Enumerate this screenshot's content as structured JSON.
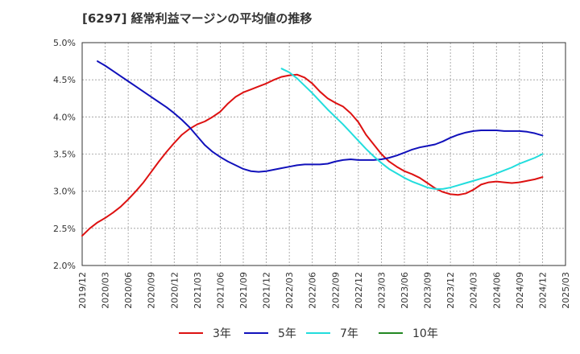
{
  "chart_data": {
    "type": "line",
    "title": "[6297]  経常利益マージンの平均値の推移",
    "xlabel": "",
    "ylabel": "",
    "ylim": [
      2.0,
      5.0
    ],
    "yticks": [
      "2.0%",
      "2.5%",
      "3.0%",
      "3.5%",
      "4.0%",
      "4.5%",
      "5.0%"
    ],
    "xticks": [
      "2019/12",
      "2020/03",
      "2020/06",
      "2020/09",
      "2020/12",
      "2021/03",
      "2021/06",
      "2021/09",
      "2021/12",
      "2022/03",
      "2022/06",
      "2022/09",
      "2022/12",
      "2023/03",
      "2023/06",
      "2023/09",
      "2023/12",
      "2024/03",
      "2024/06",
      "2024/09",
      "2024/12",
      "2025/03"
    ],
    "grid": true,
    "legend_position": "bottom",
    "series": [
      {
        "name": "3年",
        "color": "#dd1111",
        "points": [
          [
            "2019/12",
            2.4
          ],
          [
            "2020/01",
            2.5
          ],
          [
            "2020/02",
            2.58
          ],
          [
            "2020/03",
            2.64
          ],
          [
            "2020/04",
            2.71
          ],
          [
            "2020/05",
            2.79
          ],
          [
            "2020/06",
            2.89
          ],
          [
            "2020/07",
            3.0
          ],
          [
            "2020/08",
            3.12
          ],
          [
            "2020/09",
            3.26
          ],
          [
            "2020/10",
            3.4
          ],
          [
            "2020/11",
            3.53
          ],
          [
            "2020/12",
            3.65
          ],
          [
            "2021/01",
            3.76
          ],
          [
            "2021/02",
            3.84
          ],
          [
            "2021/03",
            3.9
          ],
          [
            "2021/04",
            3.94
          ],
          [
            "2021/05",
            4.0
          ],
          [
            "2021/06",
            4.07
          ],
          [
            "2021/07",
            4.18
          ],
          [
            "2021/08",
            4.27
          ],
          [
            "2021/09",
            4.33
          ],
          [
            "2021/10",
            4.37
          ],
          [
            "2021/11",
            4.41
          ],
          [
            "2021/12",
            4.45
          ],
          [
            "2022/01",
            4.5
          ],
          [
            "2022/02",
            4.54
          ],
          [
            "2022/03",
            4.56
          ],
          [
            "2022/04",
            4.57
          ],
          [
            "2022/05",
            4.53
          ],
          [
            "2022/06",
            4.45
          ],
          [
            "2022/07",
            4.34
          ],
          [
            "2022/08",
            4.25
          ],
          [
            "2022/09",
            4.19
          ],
          [
            "2022/10",
            4.14
          ],
          [
            "2022/11",
            4.05
          ],
          [
            "2022/12",
            3.93
          ],
          [
            "2023/01",
            3.76
          ],
          [
            "2023/02",
            3.63
          ],
          [
            "2023/03",
            3.5
          ],
          [
            "2023/04",
            3.4
          ],
          [
            "2023/05",
            3.33
          ],
          [
            "2023/06",
            3.27
          ],
          [
            "2023/07",
            3.23
          ],
          [
            "2023/08",
            3.18
          ],
          [
            "2023/09",
            3.11
          ],
          [
            "2023/10",
            3.04
          ],
          [
            "2023/11",
            2.99
          ],
          [
            "2023/12",
            2.96
          ],
          [
            "2024/01",
            2.95
          ],
          [
            "2024/02",
            2.97
          ],
          [
            "2024/03",
            3.02
          ],
          [
            "2024/04",
            3.09
          ],
          [
            "2024/05",
            3.12
          ],
          [
            "2024/06",
            3.13
          ],
          [
            "2024/07",
            3.12
          ],
          [
            "2024/08",
            3.11
          ],
          [
            "2024/09",
            3.12
          ],
          [
            "2024/10",
            3.14
          ],
          [
            "2024/11",
            3.16
          ],
          [
            "2024/12",
            3.19
          ]
        ]
      },
      {
        "name": "5年",
        "color": "#1111bb",
        "points": [
          [
            "2020/02",
            4.75
          ],
          [
            "2020/03",
            4.69
          ],
          [
            "2020/04",
            4.62
          ],
          [
            "2020/05",
            4.55
          ],
          [
            "2020/06",
            4.48
          ],
          [
            "2020/07",
            4.41
          ],
          [
            "2020/08",
            4.34
          ],
          [
            "2020/09",
            4.27
          ],
          [
            "2020/10",
            4.2
          ],
          [
            "2020/11",
            4.13
          ],
          [
            "2020/12",
            4.05
          ],
          [
            "2021/01",
            3.96
          ],
          [
            "2021/02",
            3.86
          ],
          [
            "2021/03",
            3.74
          ],
          [
            "2021/04",
            3.62
          ],
          [
            "2021/05",
            3.53
          ],
          [
            "2021/06",
            3.46
          ],
          [
            "2021/07",
            3.4
          ],
          [
            "2021/08",
            3.35
          ],
          [
            "2021/09",
            3.3
          ],
          [
            "2021/10",
            3.27
          ],
          [
            "2021/11",
            3.26
          ],
          [
            "2021/12",
            3.27
          ],
          [
            "2022/01",
            3.29
          ],
          [
            "2022/02",
            3.31
          ],
          [
            "2022/03",
            3.33
          ],
          [
            "2022/04",
            3.35
          ],
          [
            "2022/05",
            3.36
          ],
          [
            "2022/06",
            3.36
          ],
          [
            "2022/07",
            3.36
          ],
          [
            "2022/08",
            3.37
          ],
          [
            "2022/09",
            3.4
          ],
          [
            "2022/10",
            3.42
          ],
          [
            "2022/11",
            3.43
          ],
          [
            "2022/12",
            3.42
          ],
          [
            "2023/01",
            3.42
          ],
          [
            "2023/02",
            3.42
          ],
          [
            "2023/03",
            3.43
          ],
          [
            "2023/04",
            3.45
          ],
          [
            "2023/05",
            3.48
          ],
          [
            "2023/06",
            3.52
          ],
          [
            "2023/07",
            3.56
          ],
          [
            "2023/08",
            3.59
          ],
          [
            "2023/09",
            3.61
          ],
          [
            "2023/10",
            3.63
          ],
          [
            "2023/11",
            3.67
          ],
          [
            "2023/12",
            3.72
          ],
          [
            "2024/01",
            3.76
          ],
          [
            "2024/02",
            3.79
          ],
          [
            "2024/03",
            3.81
          ],
          [
            "2024/04",
            3.82
          ],
          [
            "2024/05",
            3.82
          ],
          [
            "2024/06",
            3.82
          ],
          [
            "2024/07",
            3.81
          ],
          [
            "2024/08",
            3.81
          ],
          [
            "2024/09",
            3.81
          ],
          [
            "2024/10",
            3.8
          ],
          [
            "2024/11",
            3.78
          ],
          [
            "2024/12",
            3.75
          ]
        ]
      },
      {
        "name": "7年",
        "color": "#22dddd",
        "points": [
          [
            "2022/02",
            4.65
          ],
          [
            "2022/03",
            4.6
          ],
          [
            "2022/04",
            4.52
          ],
          [
            "2022/05",
            4.42
          ],
          [
            "2022/06",
            4.32
          ],
          [
            "2022/07",
            4.21
          ],
          [
            "2022/08",
            4.1
          ],
          [
            "2022/09",
            4.0
          ],
          [
            "2022/10",
            3.9
          ],
          [
            "2022/11",
            3.79
          ],
          [
            "2022/12",
            3.68
          ],
          [
            "2023/01",
            3.57
          ],
          [
            "2023/02",
            3.47
          ],
          [
            "2023/03",
            3.38
          ],
          [
            "2023/04",
            3.3
          ],
          [
            "2023/05",
            3.24
          ],
          [
            "2023/06",
            3.18
          ],
          [
            "2023/07",
            3.13
          ],
          [
            "2023/08",
            3.09
          ],
          [
            "2023/09",
            3.05
          ],
          [
            "2023/10",
            3.03
          ],
          [
            "2023/11",
            3.03
          ],
          [
            "2023/12",
            3.05
          ],
          [
            "2024/01",
            3.08
          ],
          [
            "2024/02",
            3.11
          ],
          [
            "2024/03",
            3.14
          ],
          [
            "2024/04",
            3.17
          ],
          [
            "2024/05",
            3.2
          ],
          [
            "2024/06",
            3.24
          ],
          [
            "2024/07",
            3.28
          ],
          [
            "2024/08",
            3.32
          ],
          [
            "2024/09",
            3.37
          ],
          [
            "2024/10",
            3.41
          ],
          [
            "2024/11",
            3.45
          ],
          [
            "2024/12",
            3.5
          ]
        ]
      },
      {
        "name": "10年",
        "color": "#228822",
        "points": []
      }
    ]
  }
}
